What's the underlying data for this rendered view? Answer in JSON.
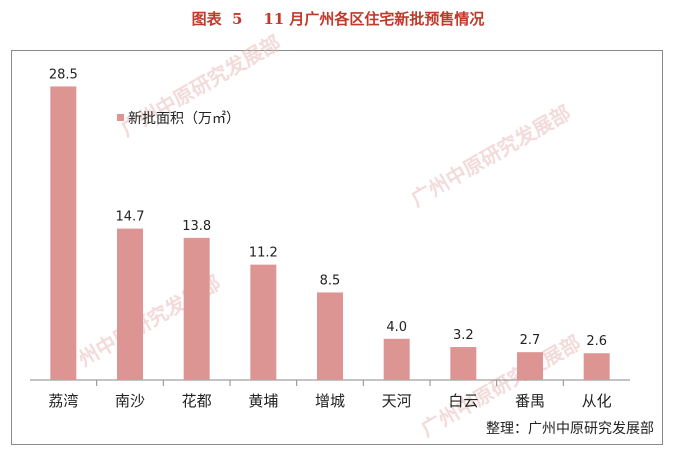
{
  "title": "图表  5    11 月广州各区住宅新批预售情况",
  "credit": "整理：广州中原研究发展部",
  "watermark_text": "广州中原研究发展部",
  "colors": {
    "bar": "#dc9592",
    "title": "#c0392b",
    "axis": "#8a8a8a"
  },
  "chart_data": {
    "type": "bar",
    "title": "图表  5    11 月广州各区住宅新批预售情况",
    "categories": [
      "荔湾",
      "南沙",
      "花都",
      "黄埔",
      "增城",
      "天河",
      "白云",
      "番禺",
      "从化"
    ],
    "series": [
      {
        "name": "新批面积（万㎡）",
        "values": [
          28.5,
          14.7,
          13.8,
          11.2,
          8.5,
          4.0,
          3.2,
          2.7,
          2.6
        ]
      }
    ],
    "value_labels": [
      "28.5",
      "14.7",
      "13.8",
      "11.2",
      "8.5",
      "4.0",
      "3.2",
      "2.7",
      "2.6"
    ],
    "xlabel": "",
    "ylabel": "",
    "ylim": [
      0,
      30
    ],
    "legend_position": "top-left, inside plot",
    "grid": false,
    "y_axis_visible": false
  }
}
